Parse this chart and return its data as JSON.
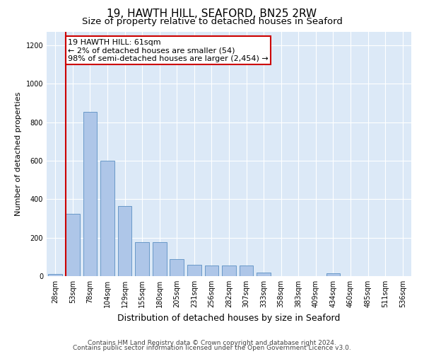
{
  "title1": "19, HAWTH HILL, SEAFORD, BN25 2RW",
  "title2": "Size of property relative to detached houses in Seaford",
  "xlabel": "Distribution of detached houses by size in Seaford",
  "ylabel": "Number of detached properties",
  "bar_labels": [
    "28sqm",
    "53sqm",
    "78sqm",
    "104sqm",
    "129sqm",
    "155sqm",
    "180sqm",
    "205sqm",
    "231sqm",
    "256sqm",
    "282sqm",
    "307sqm",
    "333sqm",
    "358sqm",
    "383sqm",
    "409sqm",
    "434sqm",
    "460sqm",
    "485sqm",
    "511sqm",
    "536sqm"
  ],
  "bar_values": [
    10,
    325,
    855,
    600,
    365,
    175,
    175,
    90,
    60,
    55,
    55,
    55,
    20,
    0,
    0,
    0,
    15,
    0,
    0,
    0,
    0
  ],
  "bar_color": "#aec6e8",
  "bar_edge_color": "#5a8fc2",
  "vline_x_index": 1,
  "vline_color": "#cc0000",
  "ylim": [
    0,
    1270
  ],
  "yticks": [
    0,
    200,
    400,
    600,
    800,
    1000,
    1200
  ],
  "annotation_text": "19 HAWTH HILL: 61sqm\n← 2% of detached houses are smaller (54)\n98% of semi-detached houses are larger (2,454) →",
  "annotation_box_facecolor": "#ffffff",
  "annotation_box_edgecolor": "#cc0000",
  "footnote1": "Contains HM Land Registry data © Crown copyright and database right 2024.",
  "footnote2": "Contains public sector information licensed under the Open Government Licence v3.0.",
  "plot_bg_color": "#dce9f7",
  "fig_bg_color": "#ffffff",
  "title1_fontsize": 11,
  "title2_fontsize": 9.5,
  "xlabel_fontsize": 9,
  "ylabel_fontsize": 8,
  "tick_fontsize": 7,
  "footnote_fontsize": 6.5,
  "annotation_fontsize": 8,
  "bar_width": 0.8
}
